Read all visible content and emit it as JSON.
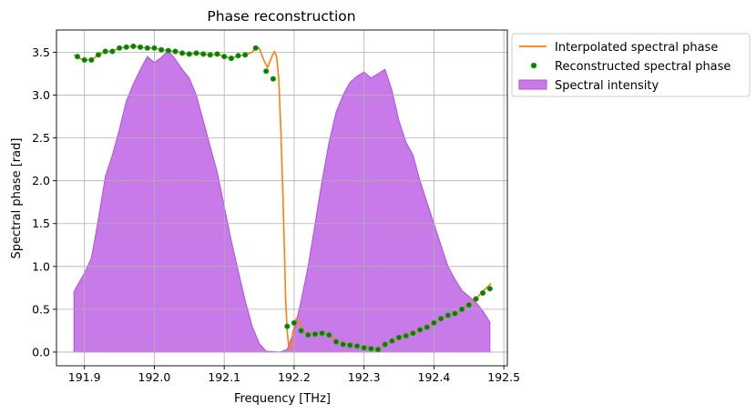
{
  "chart_data": {
    "type": "line",
    "title": "Phase reconstruction",
    "xlabel": "Frequency [THz]",
    "ylabel": "Spectral phase [rad]",
    "xlim": [
      191.86,
      192.505
    ],
    "ylim": [
      -0.16,
      3.76
    ],
    "grid": true,
    "legend_position": "outside-top-right",
    "x_ticks": [
      191.9,
      192.0,
      192.1,
      192.2,
      192.3,
      192.4,
      192.5
    ],
    "x_tick_labels": [
      "191.9",
      "192.0",
      "192.1",
      "192.2",
      "192.3",
      "192.4",
      "192.5"
    ],
    "y_ticks": [
      0.0,
      0.5,
      1.0,
      1.5,
      2.0,
      2.5,
      3.0,
      3.5
    ],
    "y_tick_labels": [
      "0.0",
      "0.5",
      "1.0",
      "1.5",
      "2.0",
      "2.5",
      "3.0",
      "3.5"
    ],
    "series": [
      {
        "name": "Interpolated spectral phase",
        "kind": "line",
        "color": "#ff7f0e",
        "points": [
          [
            191.885,
            3.47
          ],
          [
            191.893,
            3.43
          ],
          [
            191.9,
            3.41
          ],
          [
            191.91,
            3.41
          ],
          [
            191.92,
            3.47
          ],
          [
            191.93,
            3.51
          ],
          [
            191.94,
            3.51
          ],
          [
            191.95,
            3.55
          ],
          [
            191.96,
            3.56
          ],
          [
            191.97,
            3.57
          ],
          [
            191.98,
            3.56
          ],
          [
            191.99,
            3.55
          ],
          [
            192.0,
            3.55
          ],
          [
            192.01,
            3.53
          ],
          [
            192.02,
            3.52
          ],
          [
            192.03,
            3.51
          ],
          [
            192.04,
            3.49
          ],
          [
            192.05,
            3.48
          ],
          [
            192.06,
            3.49
          ],
          [
            192.07,
            3.48
          ],
          [
            192.08,
            3.47
          ],
          [
            192.09,
            3.48
          ],
          [
            192.1,
            3.45
          ],
          [
            192.11,
            3.43
          ],
          [
            192.12,
            3.46
          ],
          [
            192.13,
            3.47
          ],
          [
            192.14,
            3.5
          ],
          [
            192.145,
            3.56
          ],
          [
            192.15,
            3.55
          ],
          [
            192.157,
            3.4
          ],
          [
            192.162,
            3.32
          ],
          [
            192.168,
            3.45
          ],
          [
            192.172,
            3.51
          ],
          [
            192.175,
            3.45
          ],
          [
            192.178,
            3.2
          ],
          [
            192.181,
            2.6
          ],
          [
            192.184,
            1.8
          ],
          [
            192.186,
            1.2
          ],
          [
            192.188,
            0.6
          ],
          [
            192.19,
            0.25
          ],
          [
            192.192,
            0.08
          ],
          [
            192.195,
            0.03
          ],
          [
            192.198,
            0.22
          ],
          [
            192.203,
            0.39
          ],
          [
            192.208,
            0.34
          ],
          [
            192.212,
            0.25
          ],
          [
            192.22,
            0.2
          ],
          [
            192.23,
            0.21
          ],
          [
            192.24,
            0.22
          ],
          [
            192.25,
            0.2
          ],
          [
            192.26,
            0.14
          ],
          [
            192.27,
            0.09
          ],
          [
            192.28,
            0.08
          ],
          [
            192.29,
            0.07
          ],
          [
            192.3,
            0.05
          ],
          [
            192.31,
            0.04
          ],
          [
            192.32,
            0.03
          ],
          [
            192.33,
            0.09
          ],
          [
            192.34,
            0.13
          ],
          [
            192.35,
            0.17
          ],
          [
            192.36,
            0.19
          ],
          [
            192.37,
            0.22
          ],
          [
            192.38,
            0.26
          ],
          [
            192.39,
            0.29
          ],
          [
            192.4,
            0.34
          ],
          [
            192.41,
            0.39
          ],
          [
            192.42,
            0.43
          ],
          [
            192.43,
            0.45
          ],
          [
            192.44,
            0.5
          ],
          [
            192.45,
            0.55
          ],
          [
            192.46,
            0.62
          ],
          [
            192.47,
            0.71
          ],
          [
            192.482,
            0.8
          ]
        ]
      },
      {
        "name": "Reconstructed spectral phase",
        "kind": "scatter",
        "color": "#008000",
        "edge_color": "#2ca02c",
        "points": [
          [
            191.89,
            3.45
          ],
          [
            191.9,
            3.41
          ],
          [
            191.91,
            3.41
          ],
          [
            191.92,
            3.47
          ],
          [
            191.93,
            3.51
          ],
          [
            191.94,
            3.51
          ],
          [
            191.95,
            3.55
          ],
          [
            191.96,
            3.56
          ],
          [
            191.97,
            3.57
          ],
          [
            191.98,
            3.56
          ],
          [
            191.99,
            3.55
          ],
          [
            192.0,
            3.55
          ],
          [
            192.01,
            3.53
          ],
          [
            192.02,
            3.52
          ],
          [
            192.03,
            3.51
          ],
          [
            192.04,
            3.49
          ],
          [
            192.05,
            3.48
          ],
          [
            192.06,
            3.49
          ],
          [
            192.07,
            3.48
          ],
          [
            192.08,
            3.47
          ],
          [
            192.09,
            3.48
          ],
          [
            192.1,
            3.45
          ],
          [
            192.11,
            3.43
          ],
          [
            192.12,
            3.46
          ],
          [
            192.13,
            3.47
          ],
          [
            192.145,
            3.55
          ],
          [
            192.16,
            3.28
          ],
          [
            192.17,
            3.19
          ],
          [
            192.19,
            0.3
          ],
          [
            192.2,
            0.34
          ],
          [
            192.21,
            0.25
          ],
          [
            192.22,
            0.2
          ],
          [
            192.23,
            0.21
          ],
          [
            192.24,
            0.22
          ],
          [
            192.25,
            0.2
          ],
          [
            192.26,
            0.12
          ],
          [
            192.27,
            0.09
          ],
          [
            192.28,
            0.08
          ],
          [
            192.29,
            0.07
          ],
          [
            192.3,
            0.05
          ],
          [
            192.31,
            0.04
          ],
          [
            192.32,
            0.03
          ],
          [
            192.33,
            0.09
          ],
          [
            192.34,
            0.13
          ],
          [
            192.35,
            0.17
          ],
          [
            192.36,
            0.19
          ],
          [
            192.37,
            0.22
          ],
          [
            192.38,
            0.26
          ],
          [
            192.39,
            0.29
          ],
          [
            192.4,
            0.34
          ],
          [
            192.41,
            0.39
          ],
          [
            192.42,
            0.43
          ],
          [
            192.43,
            0.45
          ],
          [
            192.44,
            0.5
          ],
          [
            192.45,
            0.55
          ],
          [
            192.46,
            0.62
          ],
          [
            192.47,
            0.69
          ],
          [
            192.48,
            0.74
          ]
        ]
      },
      {
        "name": "Spectral intensity",
        "kind": "area",
        "color": "#c77ae8",
        "edge_color": "#b24ee0",
        "points": [
          [
            191.885,
            0.0
          ],
          [
            191.885,
            0.7
          ],
          [
            191.89,
            0.78
          ],
          [
            191.9,
            0.92
          ],
          [
            191.91,
            1.1
          ],
          [
            191.92,
            1.55
          ],
          [
            191.93,
            2.05
          ],
          [
            191.94,
            2.3
          ],
          [
            191.95,
            2.6
          ],
          [
            191.96,
            2.93
          ],
          [
            191.97,
            3.13
          ],
          [
            191.98,
            3.3
          ],
          [
            191.99,
            3.45
          ],
          [
            192.0,
            3.38
          ],
          [
            192.01,
            3.44
          ],
          [
            192.02,
            3.52
          ],
          [
            192.03,
            3.42
          ],
          [
            192.04,
            3.3
          ],
          [
            192.05,
            3.2
          ],
          [
            192.06,
            3.0
          ],
          [
            192.07,
            2.7
          ],
          [
            192.08,
            2.4
          ],
          [
            192.09,
            2.1
          ],
          [
            192.1,
            1.7
          ],
          [
            192.11,
            1.3
          ],
          [
            192.12,
            0.95
          ],
          [
            192.13,
            0.6
          ],
          [
            192.14,
            0.3
          ],
          [
            192.15,
            0.1
          ],
          [
            192.16,
            0.01
          ],
          [
            192.18,
            0.0
          ],
          [
            192.19,
            0.03
          ],
          [
            192.2,
            0.25
          ],
          [
            192.21,
            0.6
          ],
          [
            192.22,
            1.0
          ],
          [
            192.23,
            1.5
          ],
          [
            192.24,
            2.0
          ],
          [
            192.25,
            2.45
          ],
          [
            192.26,
            2.8
          ],
          [
            192.27,
            3.0
          ],
          [
            192.28,
            3.15
          ],
          [
            192.29,
            3.22
          ],
          [
            192.3,
            3.27
          ],
          [
            192.31,
            3.2
          ],
          [
            192.32,
            3.25
          ],
          [
            192.33,
            3.3
          ],
          [
            192.34,
            3.05
          ],
          [
            192.35,
            2.7
          ],
          [
            192.36,
            2.45
          ],
          [
            192.37,
            2.3
          ],
          [
            192.38,
            2.0
          ],
          [
            192.39,
            1.75
          ],
          [
            192.4,
            1.5
          ],
          [
            192.41,
            1.25
          ],
          [
            192.42,
            1.0
          ],
          [
            192.43,
            0.85
          ],
          [
            192.44,
            0.72
          ],
          [
            192.45,
            0.65
          ],
          [
            192.46,
            0.58
          ],
          [
            192.47,
            0.48
          ],
          [
            192.48,
            0.35
          ],
          [
            192.48,
            0.0
          ]
        ]
      }
    ]
  }
}
